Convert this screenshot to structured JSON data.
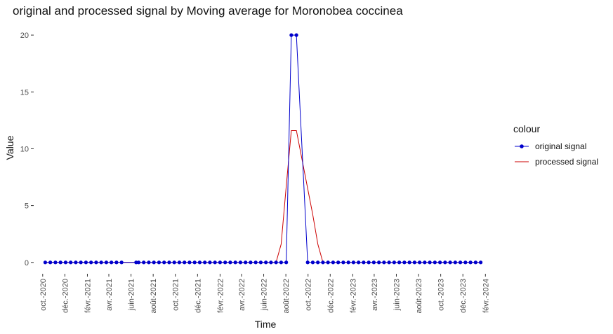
{
  "chart_data": {
    "type": "line",
    "title": "original and processed signal by Moving average for Moronobea coccinea",
    "xlabel": "Time",
    "ylabel": "Value",
    "ylim": [
      0,
      21
    ],
    "y_ticks": [
      0,
      5,
      10,
      15,
      20
    ],
    "x_ticks": [
      {
        "date": "2020-10-01",
        "label": "oct.-2020"
      },
      {
        "date": "2020-12-01",
        "label": "déc.-2020"
      },
      {
        "date": "2021-02-01",
        "label": "févr.-2021"
      },
      {
        "date": "2021-04-01",
        "label": "avr.-2021"
      },
      {
        "date": "2021-06-01",
        "label": "juin-2021"
      },
      {
        "date": "2021-08-01",
        "label": "août-2021"
      },
      {
        "date": "2021-10-01",
        "label": "oct.-2021"
      },
      {
        "date": "2021-12-01",
        "label": "déc.-2021"
      },
      {
        "date": "2022-02-01",
        "label": "févr.-2022"
      },
      {
        "date": "2022-04-01",
        "label": "avr.-2022"
      },
      {
        "date": "2022-06-01",
        "label": "juin-2022"
      },
      {
        "date": "2022-08-01",
        "label": "août-2022"
      },
      {
        "date": "2022-10-01",
        "label": "oct.-2022"
      },
      {
        "date": "2022-12-01",
        "label": "déc.-2022"
      },
      {
        "date": "2023-02-01",
        "label": "févr.-2023"
      },
      {
        "date": "2023-04-01",
        "label": "avr.-2023"
      },
      {
        "date": "2023-06-01",
        "label": "juin-2023"
      },
      {
        "date": "2023-08-01",
        "label": "août-2023"
      },
      {
        "date": "2023-10-01",
        "label": "oct.-2023"
      },
      {
        "date": "2023-12-01",
        "label": "déc.-2023"
      },
      {
        "date": "2024-02-01",
        "label": "févr.-2024"
      }
    ],
    "grid": false,
    "legend_position": "right",
    "legend_title": "colour",
    "series": [
      {
        "name": "original signal",
        "color": "#0000cc",
        "marker": "circle",
        "points": [
          [
            "2020-10-08",
            0
          ],
          [
            "2020-10-22",
            0
          ],
          [
            "2020-11-05",
            0
          ],
          [
            "2020-11-19",
            0
          ],
          [
            "2020-12-03",
            0
          ],
          [
            "2020-12-17",
            0
          ],
          [
            "2020-12-31",
            0
          ],
          [
            "2021-01-14",
            0
          ],
          [
            "2021-01-28",
            0
          ],
          [
            "2021-02-11",
            0
          ],
          [
            "2021-02-25",
            0
          ],
          [
            "2021-03-11",
            0
          ],
          [
            "2021-03-25",
            0
          ],
          [
            "2021-04-08",
            0
          ],
          [
            "2021-04-22",
            0
          ],
          [
            "2021-05-06",
            0
          ],
          [
            "2021-06-15",
            0
          ],
          [
            "2021-06-22",
            0
          ],
          [
            "2021-07-06",
            0
          ],
          [
            "2021-07-20",
            0
          ],
          [
            "2021-08-03",
            0
          ],
          [
            "2021-08-17",
            0
          ],
          [
            "2021-08-31",
            0
          ],
          [
            "2021-09-14",
            0
          ],
          [
            "2021-09-28",
            0
          ],
          [
            "2021-10-12",
            0
          ],
          [
            "2021-10-26",
            0
          ],
          [
            "2021-11-09",
            0
          ],
          [
            "2021-11-23",
            0
          ],
          [
            "2021-12-07",
            0
          ],
          [
            "2021-12-21",
            0
          ],
          [
            "2022-01-04",
            0
          ],
          [
            "2022-01-18",
            0
          ],
          [
            "2022-02-01",
            0
          ],
          [
            "2022-02-15",
            0
          ],
          [
            "2022-03-01",
            0
          ],
          [
            "2022-03-15",
            0
          ],
          [
            "2022-03-29",
            0
          ],
          [
            "2022-04-12",
            0
          ],
          [
            "2022-04-26",
            0
          ],
          [
            "2022-05-10",
            0
          ],
          [
            "2022-05-24",
            0
          ],
          [
            "2022-06-07",
            0
          ],
          [
            "2022-06-21",
            0
          ],
          [
            "2022-07-05",
            0
          ],
          [
            "2022-07-19",
            0
          ],
          [
            "2022-08-02",
            0
          ],
          [
            "2022-08-16",
            20
          ],
          [
            "2022-08-30",
            20
          ],
          [
            "2022-09-30",
            0
          ],
          [
            "2022-10-14",
            0
          ],
          [
            "2022-10-28",
            0
          ],
          [
            "2022-11-11",
            0
          ],
          [
            "2022-11-25",
            0
          ],
          [
            "2022-12-09",
            0
          ],
          [
            "2022-12-23",
            0
          ],
          [
            "2023-01-06",
            0
          ],
          [
            "2023-01-20",
            0
          ],
          [
            "2023-02-03",
            0
          ],
          [
            "2023-02-17",
            0
          ],
          [
            "2023-03-03",
            0
          ],
          [
            "2023-03-17",
            0
          ],
          [
            "2023-03-31",
            0
          ],
          [
            "2023-04-14",
            0
          ],
          [
            "2023-04-28",
            0
          ],
          [
            "2023-05-12",
            0
          ],
          [
            "2023-05-26",
            0
          ],
          [
            "2023-06-09",
            0
          ],
          [
            "2023-06-23",
            0
          ],
          [
            "2023-07-07",
            0
          ],
          [
            "2023-07-21",
            0
          ],
          [
            "2023-08-04",
            0
          ],
          [
            "2023-08-18",
            0
          ],
          [
            "2023-09-01",
            0
          ],
          [
            "2023-09-15",
            0
          ],
          [
            "2023-09-29",
            0
          ],
          [
            "2023-10-13",
            0
          ],
          [
            "2023-10-27",
            0
          ],
          [
            "2023-11-10",
            0
          ],
          [
            "2023-11-24",
            0
          ],
          [
            "2023-12-08",
            0
          ],
          [
            "2023-12-22",
            0
          ],
          [
            "2024-01-05",
            0
          ],
          [
            "2024-01-19",
            0
          ]
        ]
      },
      {
        "name": "processed signal",
        "color": "#cc0000",
        "marker": "none",
        "points": [
          [
            "2020-10-08",
            0
          ],
          [
            "2022-06-21",
            0
          ],
          [
            "2022-07-05",
            0
          ],
          [
            "2022-07-19",
            1.6
          ],
          [
            "2022-08-02",
            6.7
          ],
          [
            "2022-08-16",
            11.6
          ],
          [
            "2022-08-30",
            11.6
          ],
          [
            "2022-09-30",
            6.5
          ],
          [
            "2022-10-14",
            4.2
          ],
          [
            "2022-10-28",
            1.6
          ],
          [
            "2022-11-11",
            0
          ],
          [
            "2024-01-19",
            0
          ]
        ]
      }
    ]
  }
}
